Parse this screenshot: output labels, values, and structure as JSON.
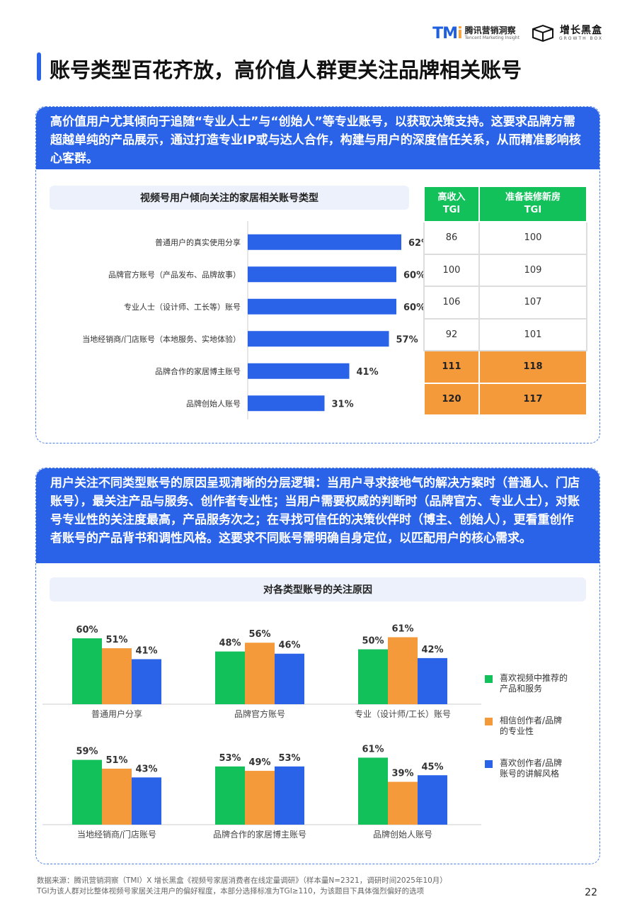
{
  "header": {
    "tmi_mark": "TM",
    "tmi_mark_i": "i",
    "tmi_name": "腾讯营销洞察",
    "tmi_sub": "Tencent Marketing Insight",
    "gb_name": "增长黑盒",
    "gb_sub": "GROWTH BOX"
  },
  "page_title": "账号类型百花齐放，高价值人群更关注品牌相关账号",
  "panel1": {
    "headline": "高价值用户尤其倾向于追随“专业人士”与“创始人”等专业账号，以获取决策支持。这要求品牌方需超越单纯的产品展示，通过打造专业IP或与达人合作，构建与用户的深度信任关系，从而精准影响核心客群。",
    "chart_title": "视频号用户倾向关注的家居相关账号类型",
    "table": {
      "headers": [
        "高收入\nTGI",
        "准备装修新房\nTGI"
      ],
      "header1_line1": "高收入",
      "header1_line2": "TGI",
      "header2_line1": "准备装修新房",
      "header2_line2": "TGI"
    }
  },
  "panel2": {
    "headline": "用户关注不同类型账号的原因呈现清晰的分层逻辑：当用户寻求接地气的解决方案时（普通人、门店账号），最关注产品与服务、创作者专业性；当用户需要权威的判断时（品牌官方、专业人士），对账号专业性的关注度最高，产品服务次之；在寻找可信任的决策伙伴时（博主、创始人），更看重创作者账号的产品背书和调性风格。这要求不同账号需明确自身定位，以匹配用户的核心需求。",
    "chart_title": "对各类型账号的关注原因"
  },
  "chart_data": [
    {
      "type": "bar",
      "orientation": "horizontal",
      "categories": [
        "普通用户的真实使用分享",
        "品牌官方账号（产品发布、品牌故事）",
        "专业人士（设计师、工长等）账号",
        "当地经销商/门店账号（本地服务、实地体验）",
        "品牌合作的家居博主账号",
        "品牌创始人账号"
      ],
      "values": [
        62,
        60,
        60,
        57,
        41,
        31
      ],
      "value_labels": [
        "62%",
        "60%",
        "60%",
        "57%",
        "41%",
        "31%"
      ],
      "bar_color": "#2a62e8",
      "tgi_high_income": [
        86,
        100,
        106,
        92,
        111,
        120
      ],
      "tgi_renovation": [
        100,
        109,
        107,
        101,
        118,
        117
      ],
      "highlight_rows": [
        4,
        5
      ]
    },
    {
      "type": "bar",
      "categories": [
        "普通用户分享",
        "品牌官方账号",
        "专业（设计师/工长）账号",
        "当地经销商/门店账号",
        "品牌合作的家居博主账号",
        "品牌创始人账号"
      ],
      "series": [
        {
          "name": "喜欢视频中推荐的产品和服务",
          "color": "#12c15a",
          "values": [
            60,
            48,
            50,
            59,
            53,
            61
          ]
        },
        {
          "name": "相信创作者/品牌的专业性",
          "color": "#f59a3a",
          "values": [
            51,
            56,
            61,
            51,
            49,
            39
          ]
        },
        {
          "name": "喜欢创作者/品牌账号的讲解风格",
          "color": "#2a62e8",
          "values": [
            41,
            46,
            42,
            43,
            53,
            45
          ]
        }
      ],
      "legend_lines": [
        [
          "喜欢视频中推荐的",
          "产品和服务"
        ],
        [
          "相信创作者/品牌",
          "的专业性"
        ],
        [
          "喜欢创作者/品牌",
          "账号的讲解风格"
        ]
      ],
      "legend_position": "right"
    }
  ],
  "footnote": {
    "line1": "数据来源：腾讯营销洞察（TMI）X 增长黑盒《视频号家居消费者在线定量调研》（样本量N=2321，调研时间2025年10月）",
    "line2": "TGI为该人群对比整体视频号家居关注用户的偏好程度，本部分选择标准为TGI≥110，为该题目下具体强烈偏好的选项"
  },
  "page_number": "22"
}
